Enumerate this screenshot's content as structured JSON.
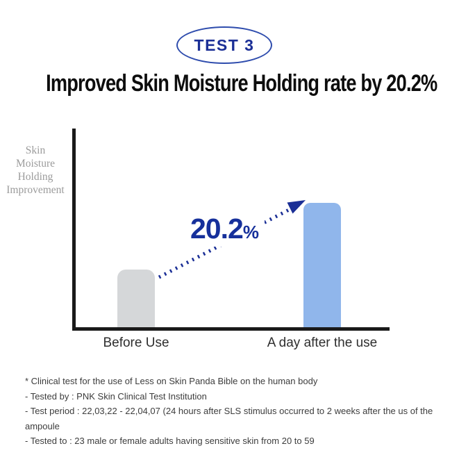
{
  "badge": {
    "label": "TEST 3"
  },
  "title": "Improved Skin Moisture Holding rate by 20.2%",
  "colors": {
    "navy": "#1b2f96",
    "badge_border": "#2e4cad",
    "bar_before": "#d5d7d9",
    "bar_after": "#90b6eb",
    "axis": "#1a1a1a",
    "ylabel_gray": "#9b9b9b",
    "footer_text": "#3c3c3c"
  },
  "chart_data": {
    "type": "bar",
    "title": "Improved Skin Moisture Holding rate by 20.2%",
    "ylabel": "Skin Moisture Holding Improvement",
    "categories": [
      "Before Use",
      "A day after the use"
    ],
    "values": [
      28.5,
      61.5
    ],
    "values_unit": "percent of plot height (no numeric axis ticks shown)",
    "annotation": {
      "value": "20.2",
      "unit": "%"
    },
    "bar_colors": [
      "#d5d7d9",
      "#90b6eb"
    ],
    "axis_ticks": "none",
    "grid": "off",
    "legend": "none"
  },
  "ylabel_lines": "Skin\nMoisture\nHolding\nImprovement",
  "footnotes": [
    "* Clinical test for the use of Less on Skin Panda Bible on the human body",
    "- Tested by : PNK Skin Clinical Test Institution",
    "- Test period : 22,03,22 - 22,04,07 (24 hours after SLS stimulus occurred to 2 weeks after the us of the ampoule",
    "- Tested to : 23 male or female adults having sensitive skin from 20 to 59"
  ]
}
